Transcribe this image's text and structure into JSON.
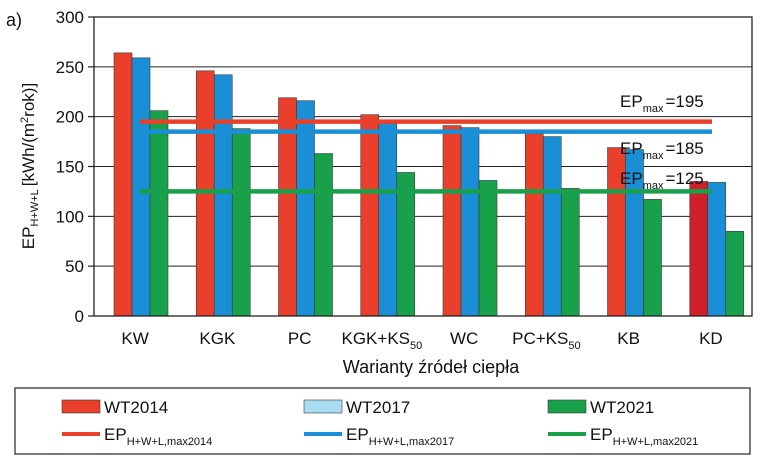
{
  "panel_label": "a)",
  "colors": {
    "WT2014": "#e8402a",
    "WT2014_alt": "#d0202a",
    "WT2017": "#1a8fd6",
    "WT2021": "#18a04a",
    "line2014": "#e8402a",
    "line2017": "#1a8fd6",
    "line2021": "#18a04a",
    "legend_WT2017_swatch": "#a8dcf2"
  },
  "chart_data": {
    "type": "bar",
    "xlabel": "Warianty źródeł ciepła",
    "ylabel": {
      "main": "EP",
      "sub": "H+W+L",
      "unit_prefix": "[kWh/(m",
      "unit_sup": "2",
      "unit_suffix": "rok)]"
    },
    "ylim": [
      0,
      300
    ],
    "yticks": [
      0,
      50,
      100,
      150,
      200,
      250,
      300
    ],
    "categories": [
      {
        "main": "KW",
        "sub": ""
      },
      {
        "main": "KGK",
        "sub": ""
      },
      {
        "main": "PC",
        "sub": ""
      },
      {
        "main": "KGK+KS",
        "sub": "50"
      },
      {
        "main": "WC",
        "sub": ""
      },
      {
        "main": "PC+KS",
        "sub": "50"
      },
      {
        "main": "KB",
        "sub": ""
      },
      {
        "main": "KD",
        "sub": ""
      }
    ],
    "series": [
      {
        "name": "WT2014",
        "values": [
          264,
          246,
          219,
          202,
          191,
          183,
          169,
          135
        ]
      },
      {
        "name": "WT2017",
        "values": [
          259,
          242,
          216,
          193,
          189,
          180,
          167,
          134
        ]
      },
      {
        "name": "WT2021",
        "values": [
          206,
          188,
          163,
          144,
          136,
          128,
          117,
          85
        ]
      }
    ],
    "reference_lines": [
      {
        "series": "EP_max2014",
        "value": 195,
        "label_main": "EP",
        "label_sub": "max",
        "label_value": "=195"
      },
      {
        "series": "EP_max2017",
        "value": 185,
        "label_main": "EP",
        "label_sub": "max",
        "label_value": "=185"
      },
      {
        "series": "EP_max2021",
        "value": 125,
        "label_main": "EP",
        "label_sub": "max",
        "label_value": "=125"
      }
    ],
    "grid": "horizontal",
    "legend": {
      "position": "bottom",
      "bar_items": [
        "WT2014",
        "WT2017",
        "WT2021"
      ],
      "line_items": [
        {
          "main": "EP",
          "sub": "H+W+L,max2014"
        },
        {
          "main": "EP",
          "sub": "H+W+L,max2017"
        },
        {
          "main": "EP",
          "sub": "H+W+L,max2021"
        }
      ]
    }
  }
}
